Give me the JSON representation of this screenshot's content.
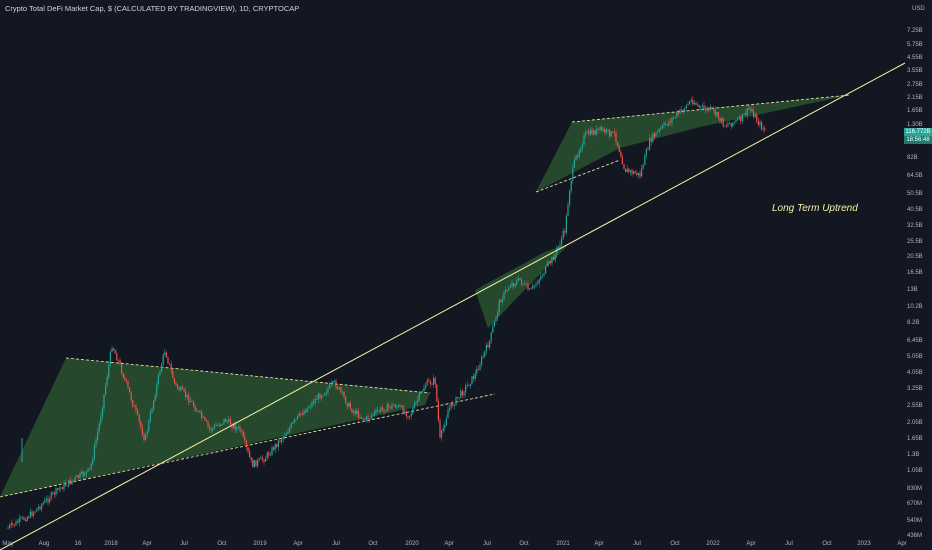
{
  "header": {
    "title": "Crypto Total DeFi Market Cap, $ (CALCULATED BY TRADINGVIEW), 1D, CRYPTOCAP"
  },
  "annotation": "Long Term Uptrend",
  "price_axis": {
    "unit": "USD",
    "current_price_label": "116.772B",
    "current_time_label": "18:56:48"
  },
  "colors": {
    "background": "#131722",
    "up": "#26a69a",
    "down": "#ef5350",
    "trendline": "#f7f5a6",
    "pattern_fill": "#2e5b32",
    "axis_text": "#b2b5be"
  },
  "chart_data": {
    "type": "candlestick",
    "title": "Crypto Total DeFi Market Cap, $ (CALCULATED BY TRADINGVIEW), 1D, CRYPTOCAP",
    "y_scale": "log",
    "y_unit": "USD",
    "x_tick_labels": [
      "May",
      "Aug",
      "16",
      "2018",
      "Apr",
      "Jul",
      "Oct",
      "2019",
      "Apr",
      "Jul",
      "Oct",
      "2020",
      "Apr",
      "Jul",
      "Oct",
      "2021",
      "Apr",
      "Jul",
      "Oct",
      "2022",
      "Apr",
      "Jul",
      "Oct",
      "2023",
      "Apr"
    ],
    "y_tick_labels": [
      "7.25B",
      "5.75B",
      "4.55B",
      "3.55B",
      "2.75B",
      "2.15B",
      "1.65B",
      "1.30B",
      "82B",
      "64.5B",
      "50.5B",
      "40.5B",
      "32.5B",
      "25.5B",
      "20.5B",
      "16.5B",
      "13B",
      "10.2B",
      "8.2B",
      "6.45B",
      "5.05B",
      "4.05B",
      "3.25B",
      "2.55B",
      "2.05B",
      "1.65B",
      "1.3B",
      "1.05B",
      "830M",
      "670M",
      "540M",
      "436M"
    ],
    "current_value_label": "116.772B",
    "annotations": [
      "Long Term Uptrend"
    ],
    "grid": false
  }
}
